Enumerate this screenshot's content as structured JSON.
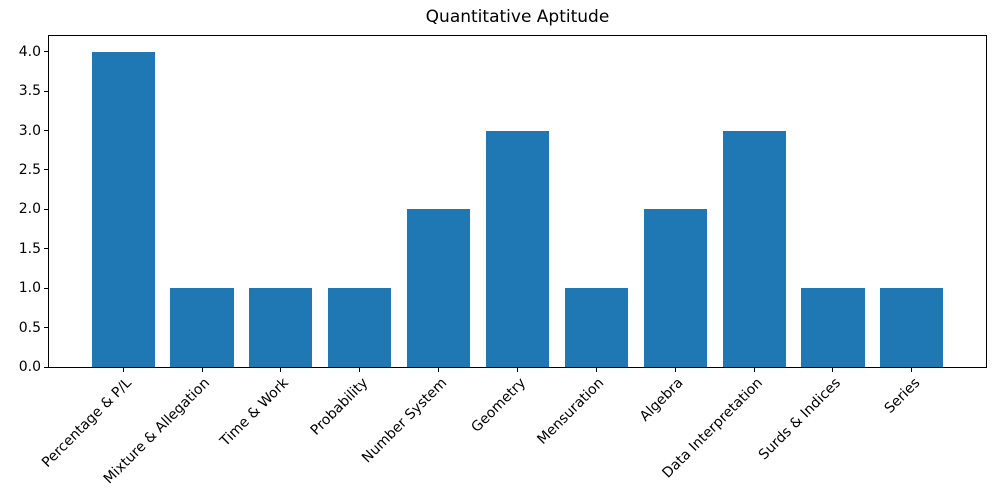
{
  "figure": {
    "title": "Quantitative Aptitude",
    "background_color": "#ffffff",
    "axis_color": "#000000"
  },
  "chart_data": {
    "type": "bar",
    "title": "Quantitative Aptitude",
    "xlabel": "",
    "ylabel": "",
    "categories": [
      "Percentage & P/L",
      "Mixture & Allegation",
      "Time & Work",
      "Probability",
      "Number System",
      "Geometry",
      "Mensuration",
      "Algebra",
      "Data Interpretation",
      "Surds & Indices",
      "Series"
    ],
    "values": [
      4,
      1,
      1,
      1,
      2,
      3,
      1,
      2,
      3,
      1,
      1
    ],
    "bar_color": "#1f77b4",
    "bar_width_fraction": 0.8,
    "ylim": [
      0,
      4.2
    ],
    "yticks": [
      0.0,
      0.5,
      1.0,
      1.5,
      2.0,
      2.5,
      3.0,
      3.5,
      4.0
    ],
    "ytick_labels": [
      "0.0",
      "0.5",
      "1.0",
      "1.5",
      "2.0",
      "2.5",
      "3.0",
      "3.5",
      "4.0"
    ],
    "xtick_rotation_deg": 45,
    "grid": false,
    "legend_position": "none"
  }
}
